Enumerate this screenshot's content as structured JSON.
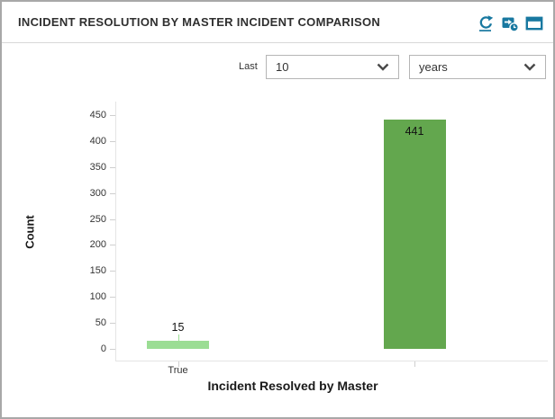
{
  "panel": {
    "title": "INCIDENT RESOLUTION BY MASTER INCIDENT COMPARISON"
  },
  "header_icons": [
    {
      "name": "refresh-icon"
    },
    {
      "name": "schedule-icon"
    },
    {
      "name": "maximize-icon"
    }
  ],
  "controls": {
    "last_label": "Last",
    "count_dropdown": {
      "value": "10"
    },
    "unit_dropdown": {
      "value": "years"
    }
  },
  "colors": {
    "accent_teal": "#1878a0",
    "bar_true": "#9bdd94",
    "bar_blank": "#63a74e",
    "panel_border": "#a8a8a8",
    "axis_line": "#e4e4e4"
  },
  "chart_data": {
    "type": "bar",
    "title": "",
    "categories": [
      "True",
      ""
    ],
    "values": [
      15,
      441
    ],
    "value_labels": [
      "15",
      "441"
    ],
    "xlabel": "Incident Resolved by Master",
    "ylabel": "Count",
    "ylim": [
      0,
      450
    ],
    "yticks": [
      0,
      50,
      100,
      150,
      200,
      250,
      300,
      350,
      400,
      450
    ],
    "grid": false,
    "legend": "none",
    "bar_colors": [
      "#9bdd94",
      "#63a74e"
    ]
  }
}
